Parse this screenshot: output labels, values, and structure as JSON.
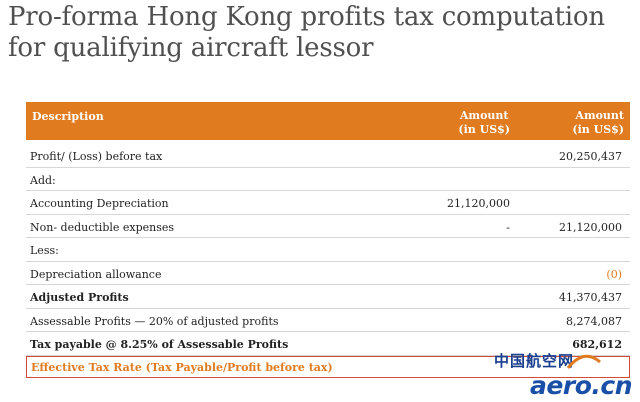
{
  "title": "Pro-forma Hong Kong profits tax computation for qualifying aircraft lessor",
  "colors": {
    "header_bg": "#e07b1f",
    "accent_orange": "#e07b1f",
    "highlight_border": "#d24a3a",
    "watermark_blue": "#1a4fa8"
  },
  "table": {
    "headers": {
      "description": "Description",
      "amount1_line1": "Amount",
      "amount1_line2": "(in US$)",
      "amount2_line1": "Amount",
      "amount2_line2": "(in US$)"
    },
    "rows": [
      {
        "description": "Profit/ (Loss) before tax",
        "amount1": "",
        "amount2": "20,250,437",
        "bold": false
      },
      {
        "description": "Add:",
        "amount1": "",
        "amount2": "",
        "bold": false
      },
      {
        "description": "Accounting Depreciation",
        "amount1": "21,120,000",
        "amount2": "",
        "bold": false
      },
      {
        "description": "Non- deductible expenses",
        "amount1": "-",
        "amount2": "21,120,000",
        "bold": false
      },
      {
        "description": "Less:",
        "amount1": "",
        "amount2": "",
        "bold": false
      },
      {
        "description": "Depreciation allowance",
        "amount1": "",
        "amount2": "(0)",
        "bold": false
      },
      {
        "description": "Adjusted Profits",
        "amount1": "",
        "amount2": "41,370,437",
        "bold": true
      },
      {
        "description": "Assessable Profits — 20% of adjusted profits",
        "amount1": "",
        "amount2": "8,274,087",
        "bold": false
      },
      {
        "description": "Tax payable @ 8.25% of Assessable Profits",
        "amount1": "",
        "amount2": "682,612",
        "bold": true
      },
      {
        "description": "Effective Tax Rate (Tax Payable/Profit before tax)",
        "amount1": "",
        "amount2": "",
        "bold": true
      }
    ]
  },
  "watermark": {
    "chinese": "中国航空网",
    "english": "aero.cn"
  }
}
